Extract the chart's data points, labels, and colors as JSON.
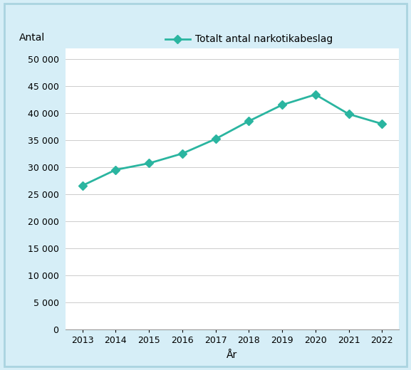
{
  "years": [
    2013,
    2014,
    2015,
    2016,
    2017,
    2018,
    2019,
    2020,
    2021,
    2022
  ],
  "values": [
    26571,
    29500,
    30700,
    32500,
    35200,
    38500,
    41500,
    43410,
    39800,
    37986
  ],
  "line_color": "#2ab5a0",
  "marker": "D",
  "marker_size": 6,
  "legend_label": "Totalt antal narkotikabeslag",
  "ylabel": "Antal",
  "xlabel": "År",
  "ylim": [
    0,
    52000
  ],
  "yticks": [
    0,
    5000,
    10000,
    15000,
    20000,
    25000,
    30000,
    35000,
    40000,
    45000,
    50000
  ],
  "ytick_labels": [
    "0",
    "5 000",
    "10 000",
    "15 000",
    "20 000",
    "25 000",
    "30 000",
    "35 000",
    "40 000",
    "45 000",
    "50 000"
  ],
  "background_color": "#d6eef7",
  "plot_bg_color": "#ffffff",
  "border_color": "#aad4e0",
  "grid_color": "#cccccc",
  "axis_label_fontsize": 10,
  "tick_fontsize": 9,
  "legend_fontsize": 10
}
